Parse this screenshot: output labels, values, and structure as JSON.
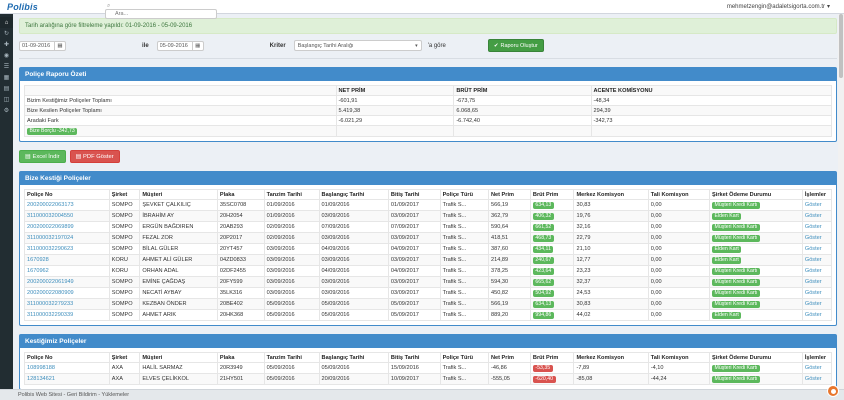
{
  "colors": {
    "accent": "#428bca",
    "green": "#5cb85c",
    "red": "#d9534f",
    "alert_bg": "#dff0d8",
    "orange": "#e8762d"
  },
  "header": {
    "brand": "Polibis",
    "search_placeholder": "Ara...",
    "user_email": "mehmetzengin@adaletsigorta.com.tr",
    "caret": "▾"
  },
  "sidebar": {
    "icons": [
      {
        "name": "home-icon",
        "glyph": "⌂"
      },
      {
        "name": "sync-icon",
        "glyph": "↻"
      },
      {
        "name": "add-policy-icon",
        "glyph": "✚"
      },
      {
        "name": "view-icon",
        "glyph": "◉"
      },
      {
        "name": "list-icon",
        "glyph": "☰"
      },
      {
        "name": "calendar-icon",
        "glyph": "▦"
      },
      {
        "name": "reports-icon",
        "glyph": "▤"
      },
      {
        "name": "wallet-icon",
        "glyph": "◫"
      },
      {
        "name": "settings-icon",
        "glyph": "⚙"
      }
    ]
  },
  "alert": {
    "text": "Tarih aralığına göre filtreleme yapıldı: 01-09-2016 - 05-09-2016"
  },
  "filters": {
    "date_from": "01-09-2016",
    "date_to": "05-09-2016",
    "separator_label": "ile",
    "criteria_label": "Kriter",
    "select_value": "Başlangıç Tarihi Aralığı",
    "suffix_label": "'a göre",
    "submit_label": "Raporu Oluştur",
    "submit_icon": "✔",
    "calendar_glyph": "▦"
  },
  "summary": {
    "title": "Poliçe Raporu Özeti",
    "col_headers": [
      "",
      "NET PRİM",
      "BRÜT PRİM",
      "ACENTE KOMİSYONU"
    ],
    "rows": [
      {
        "label": "Bizim Kestiğimiz Poliçeler Toplamı",
        "net": "-601,91",
        "brut": "-673,75",
        "komisyon": "-48,34"
      },
      {
        "label": "Bize Kesilen Poliçeler Toplamı",
        "net": "5.419,38",
        "brut": "6.068,65",
        "komisyon": "294,39"
      },
      {
        "label": "Aradaki Fark",
        "net": "-6.021,29",
        "brut": "-6.742,40",
        "komisyon": "-342,73"
      }
    ],
    "badge": "Bize Borçlu -342,73"
  },
  "export_buttons": {
    "excel": "Excel İndir",
    "pdf": "PDF Göster",
    "file_glyph": "▤"
  },
  "policy_columns": [
    "Poliçe No",
    "Şirket",
    "Müşteri",
    "Plaka",
    "Tanzim Tarihi",
    "Başlangıç Tarihi",
    "Bitiş Tarihi",
    "Poliçe Türü",
    "Net Prim",
    "Brüt Prim",
    "Merkez Komisyon",
    "Tali Komisyon",
    "Şirket Ödeme Durumu",
    "İşlemler"
  ],
  "sections": [
    {
      "title": "Bize Kestiği Poliçeler",
      "brut_color": "green",
      "rows": [
        {
          "policy_no": "200200022063173",
          "company": "SOMPO",
          "customer": "ŞEVKET ÇALKILIÇ",
          "plate": "35SC0708",
          "issue_date": "01/09/2016",
          "start_date": "01/09/2016",
          "end_date": "01/09/2017",
          "type": "Trafik S...",
          "net": "566,19",
          "brut": "634,13",
          "merkez": "30,83",
          "tali": "0,00",
          "payment": "Müşteri Kredi Kartı",
          "action": "Göster"
        },
        {
          "policy_no": "311000032004550",
          "company": "SOMPO",
          "customer": "İBRAHİM AY",
          "plate": "20H2054",
          "issue_date": "01/09/2016",
          "start_date": "03/09/2016",
          "end_date": "03/09/2017",
          "type": "Trafik S...",
          "net": "362,79",
          "brut": "406,32",
          "merkez": "19,76",
          "tali": "0,00",
          "payment": "Elden Kart",
          "action": "Göster"
        },
        {
          "policy_no": "200200022069899",
          "company": "SOMPO",
          "customer": "ERGÜN BAĞDIREN",
          "plate": "20AB293",
          "issue_date": "02/09/2016",
          "start_date": "07/09/2016",
          "end_date": "07/09/2017",
          "type": "Trafik S...",
          "net": "590,64",
          "brut": "661,52",
          "merkez": "32,16",
          "tali": "0,00",
          "payment": "Müşteri Kredi Kartı",
          "action": "Göster"
        },
        {
          "policy_no": "311000032197024",
          "company": "SOMPO",
          "customer": "FEZAL ZOR",
          "plate": "20P2017",
          "issue_date": "02/09/2016",
          "start_date": "03/09/2016",
          "end_date": "03/09/2017",
          "type": "Trafik S...",
          "net": "418,51",
          "brut": "468,73",
          "merkez": "22,79",
          "tali": "0,00",
          "payment": "Müşteri Kredi Kartı",
          "action": "Göster"
        },
        {
          "policy_no": "311000032290623",
          "company": "SOMPO",
          "customer": "BİLAL GÜLER",
          "plate": "20YT457",
          "issue_date": "03/09/2016",
          "start_date": "04/09/2016",
          "end_date": "04/09/2017",
          "type": "Trafik S...",
          "net": "387,60",
          "brut": "434,11",
          "merkez": "21,10",
          "tali": "0,00",
          "payment": "Elden Kart",
          "action": "Göster"
        },
        {
          "policy_no": "1670928",
          "company": "KORU",
          "customer": "AHMET ALİ GÜLER",
          "plate": "04ZD0833",
          "issue_date": "03/09/2016",
          "start_date": "03/09/2016",
          "end_date": "03/09/2017",
          "type": "Trafik S...",
          "net": "214,89",
          "brut": "240,67",
          "merkez": "12,77",
          "tali": "0,00",
          "payment": "Elden Kart",
          "action": "Göster"
        },
        {
          "policy_no": "1670962",
          "company": "KORU",
          "customer": "ORHAN ADAL",
          "plate": "02DF2455",
          "issue_date": "03/09/2016",
          "start_date": "04/09/2016",
          "end_date": "04/09/2017",
          "type": "Trafik S...",
          "net": "378,25",
          "brut": "423,64",
          "merkez": "23,23",
          "tali": "0,00",
          "payment": "Müşteri Kredi Kartı",
          "action": "Göster"
        },
        {
          "policy_no": "200200022061949",
          "company": "SOMPO",
          "customer": "EMİNE ÇAĞDAŞ",
          "plate": "20FY599",
          "issue_date": "03/09/2016",
          "start_date": "03/09/2016",
          "end_date": "03/09/2017",
          "type": "Trafik S...",
          "net": "594,30",
          "brut": "665,62",
          "merkez": "32,37",
          "tali": "0,00",
          "payment": "Müşteri Kredi Kartı",
          "action": "Göster"
        },
        {
          "policy_no": "200200022080909",
          "company": "SOMPO",
          "customer": "NECATİ AYBAY",
          "plate": "35LK316",
          "issue_date": "03/09/2016",
          "start_date": "03/09/2016",
          "end_date": "03/09/2017",
          "type": "Trafik S...",
          "net": "450,82",
          "brut": "504,92",
          "merkez": "24,53",
          "tali": "0,00",
          "payment": "Müşteri Kredi Kartı",
          "action": "Göster"
        },
        {
          "policy_no": "311000032279233",
          "company": "SOMPO",
          "customer": "KEZBAN ÖNDER",
          "plate": "20BE402",
          "issue_date": "05/09/2016",
          "start_date": "05/09/2016",
          "end_date": "05/09/2017",
          "type": "Trafik S...",
          "net": "566,19",
          "brut": "634,13",
          "merkez": "30,83",
          "tali": "0,00",
          "payment": "Müşteri Kredi Kartı",
          "action": "Göster"
        },
        {
          "policy_no": "311000032290339",
          "company": "SOMPO",
          "customer": "AHMET ARIK",
          "plate": "20HK368",
          "issue_date": "05/09/2016",
          "start_date": "05/09/2016",
          "end_date": "05/09/2017",
          "type": "Trafik S...",
          "net": "889,20",
          "brut": "994,86",
          "merkez": "44,02",
          "tali": "0,00",
          "payment": "Elden Kart",
          "action": "Göster"
        }
      ]
    },
    {
      "title": "Kestiğimiz Poliçeler",
      "brut_color": "red",
      "rows": [
        {
          "policy_no": "108998188",
          "company": "AXA",
          "customer": "HALİL SARMAZ",
          "plate": "20R3949",
          "issue_date": "05/09/2016",
          "start_date": "05/09/2016",
          "end_date": "15/09/2016",
          "type": "Trafik S...",
          "net": "-46,86",
          "brut": "-53,35",
          "merkez": "-7,89",
          "tali": "-4,10",
          "payment": "Müşteri Kredi Kartı",
          "action": "Göster"
        },
        {
          "policy_no": "128134621",
          "company": "AXA",
          "customer": "ELVES ÇELİKKOL",
          "plate": "21HY501",
          "issue_date": "05/09/2016",
          "start_date": "20/09/2016",
          "end_date": "10/09/2017",
          "type": "Trafik S...",
          "net": "-555,05",
          "brut": "-620,40",
          "merkez": "-85,08",
          "tali": "-44,24",
          "payment": "Müşteri Kredi Kartı",
          "action": "Göster"
        }
      ]
    }
  ],
  "footer": {
    "text": "Polibis Web Sitesi - Geri Bildirim - Yüklemeler"
  }
}
